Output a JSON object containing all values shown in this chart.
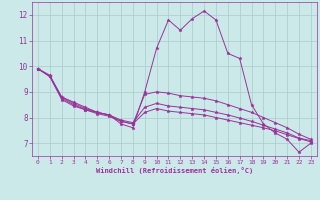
{
  "xlabel": "Windchill (Refroidissement éolien,°C)",
  "background_color": "#cce9e9",
  "line_color": "#993399",
  "grid_color": "#aacccc",
  "xlim": [
    -0.5,
    23.5
  ],
  "ylim": [
    6.5,
    12.5
  ],
  "yticks": [
    7,
    8,
    9,
    10,
    11,
    12
  ],
  "xticks": [
    0,
    1,
    2,
    3,
    4,
    5,
    6,
    7,
    8,
    9,
    10,
    11,
    12,
    13,
    14,
    15,
    16,
    17,
    18,
    19,
    20,
    21,
    22,
    23
  ],
  "series": [
    [
      9.9,
      9.6,
      8.8,
      8.6,
      8.4,
      8.2,
      8.1,
      7.75,
      7.6,
      9.0,
      10.7,
      11.8,
      11.4,
      11.85,
      12.15,
      11.8,
      10.5,
      10.3,
      8.5,
      7.75,
      7.4,
      7.15,
      6.65,
      7.0
    ],
    [
      9.9,
      9.65,
      8.8,
      8.55,
      8.35,
      8.2,
      8.1,
      7.85,
      7.75,
      8.9,
      9.0,
      8.95,
      8.85,
      8.8,
      8.75,
      8.65,
      8.5,
      8.35,
      8.2,
      8.0,
      7.8,
      7.6,
      7.35,
      7.15
    ],
    [
      9.9,
      9.6,
      8.75,
      8.5,
      8.3,
      8.2,
      8.1,
      7.9,
      7.8,
      8.4,
      8.55,
      8.45,
      8.4,
      8.35,
      8.3,
      8.2,
      8.1,
      7.98,
      7.85,
      7.7,
      7.55,
      7.4,
      7.2,
      7.1
    ],
    [
      9.9,
      9.6,
      8.7,
      8.45,
      8.3,
      8.15,
      8.05,
      7.85,
      7.75,
      8.2,
      8.35,
      8.25,
      8.2,
      8.15,
      8.1,
      8.0,
      7.9,
      7.8,
      7.7,
      7.6,
      7.48,
      7.33,
      7.18,
      7.05
    ]
  ]
}
